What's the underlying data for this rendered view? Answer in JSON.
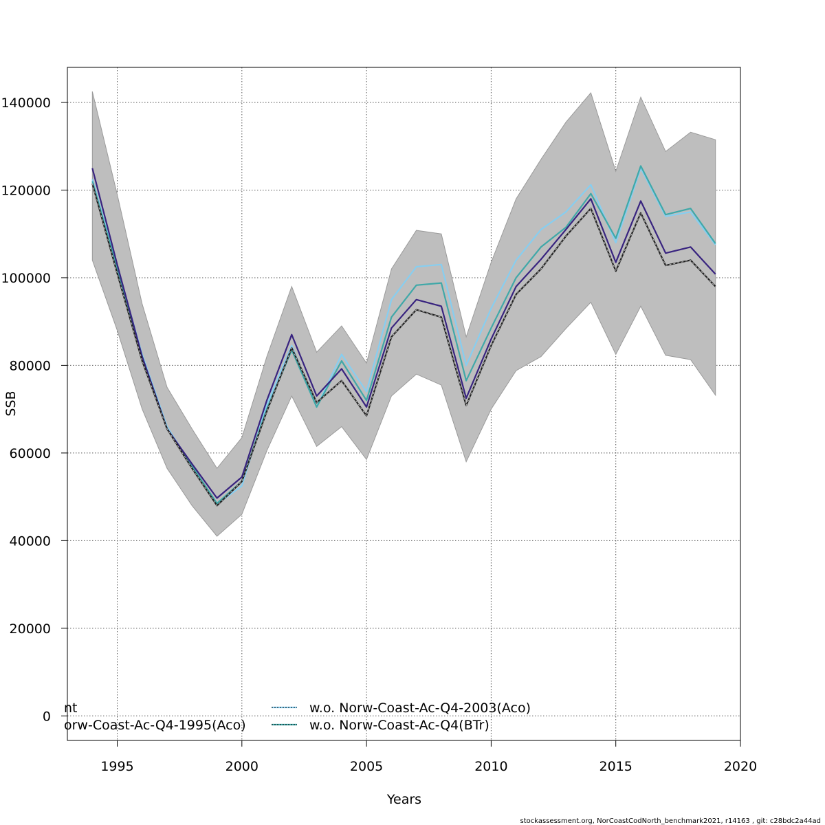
{
  "chart_data": {
    "type": "line",
    "title": "",
    "xlabel": "Years",
    "ylabel": "SSB",
    "xlim": [
      1993,
      2020
    ],
    "ylim": [
      -5600,
      148000
    ],
    "grid": true,
    "x_ticks": [
      1995,
      2000,
      2005,
      2010,
      2015,
      2020
    ],
    "y_ticks": [
      0,
      20000,
      40000,
      60000,
      80000,
      100000,
      120000,
      140000
    ],
    "x_tick_labels": [
      "1995",
      "2000",
      "2005",
      "2010",
      "2015",
      "2020"
    ],
    "y_tick_labels": [
      "0",
      "20000",
      "40000",
      "60000",
      "80000",
      "100000",
      "120000",
      "140000"
    ],
    "x": [
      1994,
      1995,
      1996,
      1997,
      1998,
      1999,
      2000,
      2001,
      2002,
      2003,
      2004,
      2005,
      2006,
      2007,
      2008,
      2009,
      2010,
      2011,
      2012,
      2013,
      2014,
      2015,
      2016,
      2017,
      2018,
      2019
    ],
    "band": {
      "color": "#bebebe",
      "upper": [
        142500,
        119000,
        94000,
        75000,
        65500,
        56500,
        63500,
        82000,
        98000,
        83000,
        89000,
        80500,
        102000,
        110800,
        110000,
        86500,
        103500,
        118000,
        127000,
        135500,
        142200,
        124300,
        141200,
        128800,
        133200,
        131500
      ],
      "lower": [
        104000,
        88000,
        70000,
        56500,
        48000,
        41000,
        46000,
        60500,
        73000,
        61500,
        66000,
        58500,
        73000,
        78000,
        75500,
        58000,
        70000,
        78800,
        82000,
        88400,
        94400,
        82500,
        93500,
        82300,
        81300,
        73200
      ]
    },
    "series": [
      {
        "name": "",
        "color": "#1f1f1f",
        "style": "solid",
        "values": [
          121500,
          101000,
          81000,
          65500,
          56500,
          48000,
          53500,
          69500,
          84000,
          71500,
          76500,
          68500,
          86500,
          92700,
          91000,
          70800,
          84500,
          96200,
          102000,
          109500,
          115800,
          101500,
          114800,
          102800,
          104000,
          98000
        ]
      },
      {
        "name": "",
        "color": "#38237f",
        "style": "solid",
        "values": [
          125000,
          103000,
          82000,
          65500,
          57500,
          49700,
          54500,
          72000,
          87000,
          73000,
          79200,
          70500,
          88500,
          95000,
          93500,
          72500,
          86000,
          98000,
          104200,
          111000,
          118000,
          103500,
          117500,
          105600,
          107000,
          100800
        ]
      },
      {
        "name": "w.o. Norw-Coast-Ac-Q4-2003(Aco)",
        "color": "#87cef0",
        "style": "solid",
        "values": [
          122500,
          102500,
          82500,
          66000,
          57000,
          48300,
          52500,
          71000,
          84500,
          70500,
          82500,
          74000,
          95000,
          102500,
          103000,
          80000,
          93000,
          104000,
          111000,
          115000,
          121200,
          108000,
          125000,
          114000,
          115000,
          107500
        ]
      },
      {
        "name": "w.o. Norw-Coast-Ac-Q4(BTr)",
        "color": "#3fa8a8",
        "style": "solid",
        "values": [
          122000,
          102000,
          82000,
          65500,
          57000,
          48500,
          53500,
          70000,
          83500,
          70500,
          81000,
          72000,
          91000,
          98300,
          98800,
          76500,
          88500,
          100000,
          107000,
          111500,
          119200,
          109000,
          125500,
          114400,
          115800,
          107800
        ]
      }
    ],
    "legend": {
      "placement": "bottom",
      "entries": [
        {
          "label": "nt",
          "color": "#1f1f1f"
        },
        {
          "label": "orw-Coast-Ac-Q4-1995(Aco)",
          "color": "#38237f"
        },
        {
          "label": "w.o. Norw-Coast-Ac-Q4-2003(Aco)",
          "color": "#87cef0"
        },
        {
          "label": "w.o. Norw-Coast-Ac-Q4(BTr)",
          "color": "#3fa8a8"
        }
      ]
    },
    "footer": "stockassessment.org, NorCoastCodNorth_benchmark2021, r14163 , git: c28bdc2a44ad"
  }
}
